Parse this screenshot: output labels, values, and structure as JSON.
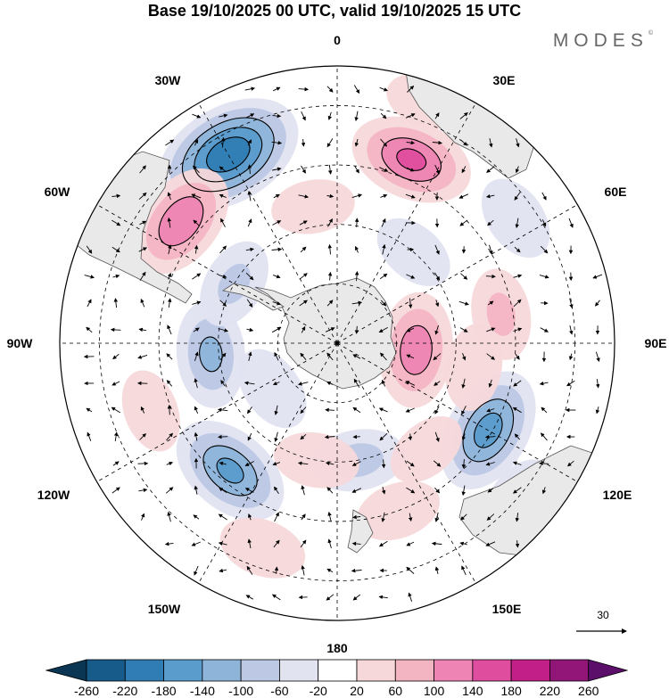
{
  "title": "Base 19/10/2025 00 UTC, valid 19/10/2025 15 UTC",
  "brand": "MODES",
  "brand_mark": "©",
  "lon_labels": {
    "top": "0",
    "top_right": "30E",
    "right_upper": "60E",
    "right": "90E",
    "right_lower": "120E",
    "bottom_right": "150E",
    "bottom": "180",
    "bottom_left": "150W",
    "left_lower": "120W",
    "left": "90W",
    "left_upper": "60W",
    "top_left": "30W"
  },
  "vector_scale": "30",
  "colorbar": {
    "ticks": [
      "-260",
      "-220",
      "-180",
      "-140",
      "-100",
      "-60",
      "-20",
      "20",
      "60",
      "100",
      "140",
      "180",
      "220",
      "260"
    ],
    "colors": [
      "#0a3553",
      "#165b8a",
      "#2f7db4",
      "#5a9ccc",
      "#8eb4da",
      "#bcc8e4",
      "#e2e3f1",
      "#ffffff",
      "#f7d8da",
      "#f4b5c3",
      "#ee84b3",
      "#de4d9e",
      "#c21f88",
      "#911678",
      "#5c0f6a"
    ]
  },
  "anomalies": [
    {
      "lon": -30,
      "lat": -35,
      "value": -220
    },
    {
      "lon": 22,
      "lat": -40,
      "value": 150
    },
    {
      "lon": -52,
      "lat": -40,
      "value": 140
    },
    {
      "lon": 95,
      "lat": -70,
      "value": 130
    },
    {
      "lon": 120,
      "lat": -46,
      "value": -160
    },
    {
      "lon": -140,
      "lat": -48,
      "value": -150
    },
    {
      "lon": -95,
      "lat": -58,
      "value": -110
    },
    {
      "lon": 80,
      "lat": -48,
      "value": 70
    },
    {
      "lon": 130,
      "lat": -30,
      "value": -50
    },
    {
      "lon": -160,
      "lat": -35,
      "value": 60
    },
    {
      "lon": 160,
      "lat": -45,
      "value": 55
    },
    {
      "lon": 20,
      "lat": -25,
      "value": 40
    },
    {
      "lon": 55,
      "lat": -35,
      "value": -60
    },
    {
      "lon": -110,
      "lat": -40,
      "value": 50
    },
    {
      "lon": -60,
      "lat": -60,
      "value": -70
    },
    {
      "lon": 170,
      "lat": -60,
      "value": -80
    },
    {
      "lon": -170,
      "lat": -60,
      "value": 55
    },
    {
      "lon": 100,
      "lat": -55,
      "value": 60
    },
    {
      "lon": -10,
      "lat": -55,
      "value": 50
    },
    {
      "lon": 40,
      "lat": -60,
      "value": -50
    },
    {
      "lon": 140,
      "lat": -55,
      "value": 45
    },
    {
      "lon": -125,
      "lat": -70,
      "value": -60
    }
  ]
}
